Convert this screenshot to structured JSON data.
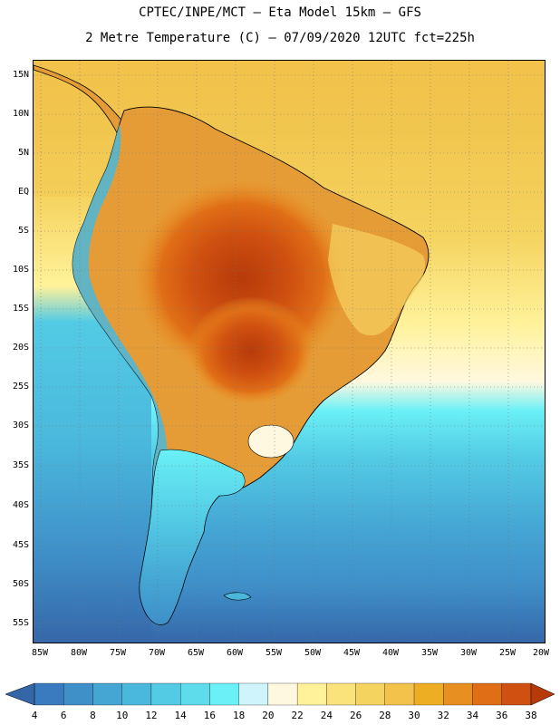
{
  "header": {
    "line1": "CPTEC/INPE/MCT –  Eta Model 15km – GFS",
    "line2": "2 Metre Temperature (C) – 07/09/2020 12UTC fct=225h"
  },
  "axes": {
    "lat_labels": [
      "15N",
      "10N",
      "5N",
      "EQ",
      "5S",
      "10S",
      "15S",
      "20S",
      "25S",
      "30S",
      "35S",
      "40S",
      "45S",
      "50S",
      "55S"
    ],
    "lon_labels": [
      "85W",
      "80W",
      "75W",
      "70W",
      "65W",
      "60W",
      "55W",
      "50W",
      "45W",
      "40W",
      "35W",
      "30W",
      "25W",
      "20W"
    ]
  },
  "colorbar": {
    "ticks": [
      "4",
      "6",
      "8",
      "10",
      "12",
      "14",
      "16",
      "18",
      "20",
      "22",
      "24",
      "26",
      "28",
      "30",
      "32",
      "34",
      "36",
      "38"
    ],
    "colors": [
      "#3a7bbf",
      "#3f8fc9",
      "#45a6d4",
      "#4ab8dc",
      "#53cbe5",
      "#5fdcec",
      "#6af0f6",
      "#cff4fb",
      "#fff8e0",
      "#fff29a",
      "#f9e37a",
      "#f5d35f",
      "#f2c24a",
      "#eeae23",
      "#e88f22",
      "#e06e16",
      "#cf5010",
      "#b73a0a"
    ]
  },
  "legend_colors": {
    "ocean_deep": "#3566a8",
    "ocean_mid": "#4a9ccd",
    "ocean_light": "#5ec6df",
    "land_hot": "#c8621b",
    "land_warm": "#e69c36",
    "land_mild": "#f2c24a"
  }
}
